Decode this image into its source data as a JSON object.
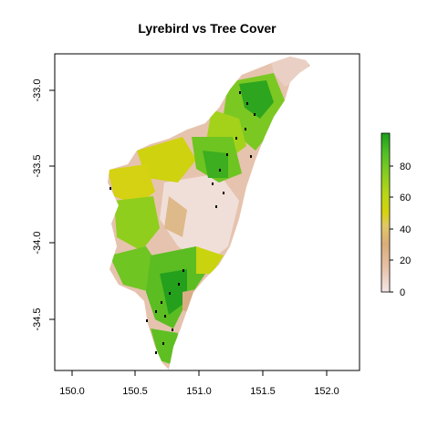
{
  "chart_data": {
    "type": "heatmap",
    "title": "Lyrebird vs Tree Cover",
    "xlabel": "",
    "ylabel": "",
    "xlim": [
      149.85,
      152.3
    ],
    "ylim": [
      -34.85,
      -32.78
    ],
    "x_ticks": [
      "150.0",
      "150.5",
      "151.0",
      "151.5",
      "152.0"
    ],
    "y_ticks": [
      "-33.0",
      "-33.5",
      "-34.0",
      "-34.5"
    ],
    "legend": {
      "placement": "right",
      "min": 0,
      "max": 100,
      "ticks": [
        "0",
        "20",
        "40",
        "60",
        "80"
      ],
      "colors": [
        "#f2e6e6",
        "#e8c2a8",
        "#d9ad7a",
        "#e0c864",
        "#d6d20e",
        "#b7d617",
        "#85cc1f",
        "#4fbf26",
        "#1a9e1a"
      ]
    },
    "grid": false,
    "lyrebird_marker_color": "#000000"
  }
}
